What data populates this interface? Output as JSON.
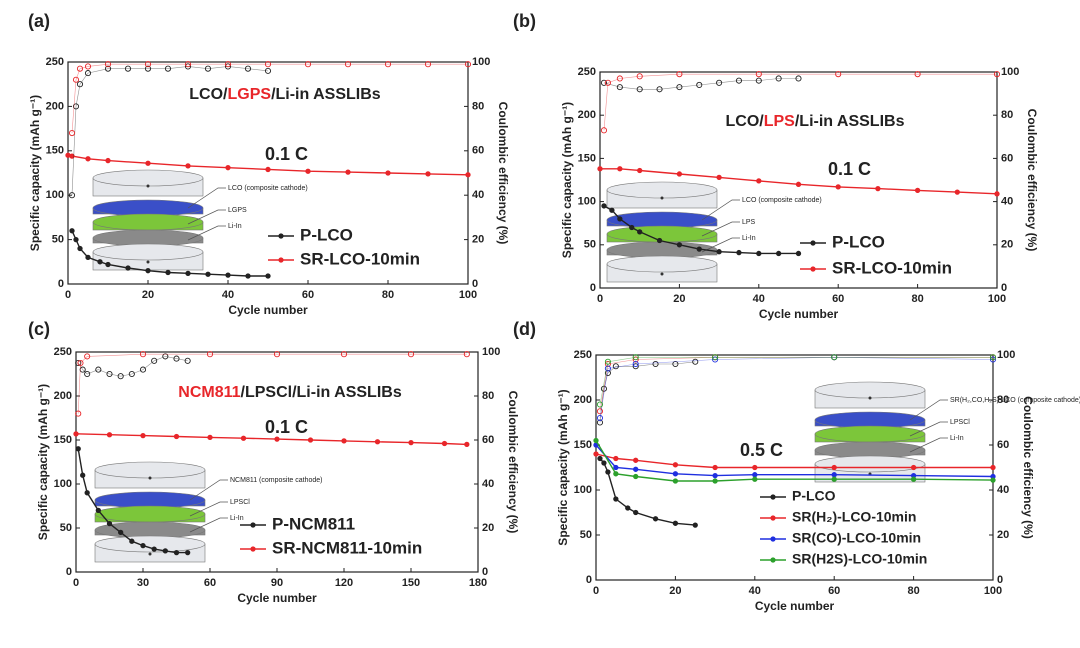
{
  "chart_data": [
    {
      "type": "line",
      "panel_label": "(a)",
      "annotation_parts": [
        {
          "text": "LCO/",
          "color": "#222222"
        },
        {
          "text": "LGPS",
          "color": "#e8262a"
        },
        {
          "text": "/Li-in ASSLIBs",
          "color": "#222222"
        }
      ],
      "rate_label": "0.1 C",
      "inset_labels": [
        {
          "text": "LCO (composite cathode)",
          "color": "#222222"
        },
        {
          "text": "LGPS",
          "color": "#e8262a"
        },
        {
          "text": "Li-In",
          "color": "#222222"
        }
      ],
      "xlabel": "Cycle number",
      "ylabel": "Specific capacity (mAh g⁻¹)",
      "y2label": "Coulombic efficiency (%)",
      "xlim": [
        0,
        100
      ],
      "xticks": [
        0,
        20,
        40,
        60,
        80,
        100
      ],
      "ylim": [
        0,
        250
      ],
      "yticks": [
        0,
        50,
        100,
        150,
        200,
        250
      ],
      "y2lim": [
        0,
        100
      ],
      "y2ticks": [
        0,
        20,
        40,
        60,
        80,
        100
      ],
      "series": [
        {
          "name": "P-LCO",
          "color": "#222222",
          "x": [
            1,
            2,
            3,
            5,
            8,
            10,
            15,
            20,
            25,
            30,
            35,
            40,
            45,
            50
          ],
          "values": [
            60,
            50,
            40,
            30,
            25,
            22,
            18,
            15,
            13,
            12,
            11,
            10,
            9,
            9
          ]
        },
        {
          "name": "SR-LCO-10min",
          "color": "#e8262a",
          "x": [
            0,
            1,
            5,
            10,
            20,
            30,
            40,
            50,
            60,
            70,
            80,
            90,
            100
          ],
          "values": [
            145,
            144,
            141,
            139,
            136,
            133,
            131,
            129,
            127,
            126,
            125,
            124,
            123
          ]
        },
        {
          "color": "#222222",
          "axis": "y2",
          "x": [
            1,
            2,
            3,
            5,
            10,
            15,
            20,
            25,
            30,
            35,
            40,
            45,
            50
          ],
          "values": [
            40,
            80,
            90,
            95,
            97,
            97,
            97,
            97,
            98,
            97,
            98,
            97,
            96
          ]
        },
        {
          "color": "#e8262a",
          "axis": "y2",
          "x": [
            1,
            2,
            3,
            5,
            10,
            20,
            30,
            40,
            50,
            60,
            70,
            80,
            90,
            100
          ],
          "values": [
            68,
            92,
            97,
            98,
            99,
            99,
            99,
            99,
            99,
            99,
            99,
            99,
            99,
            99
          ]
        }
      ]
    },
    {
      "type": "line",
      "panel_label": "(b)",
      "annotation_parts": [
        {
          "text": "LCO/",
          "color": "#222222"
        },
        {
          "text": "LPS",
          "color": "#e8262a"
        },
        {
          "text": "/Li-in ASSLIBs",
          "color": "#222222"
        }
      ],
      "rate_label": "0.1 C",
      "inset_labels": [
        {
          "text": "LCO (composite cathode)",
          "color": "#222222"
        },
        {
          "text": "LPS",
          "color": "#e8262a"
        },
        {
          "text": "Li-In",
          "color": "#222222"
        }
      ],
      "xlabel": "Cycle number",
      "ylabel": "Specific capacity (mAh g⁻¹)",
      "y2label": "Coulombic efficiency (%)",
      "xlim": [
        0,
        100
      ],
      "xticks": [
        0,
        20,
        40,
        60,
        80,
        100
      ],
      "ylim": [
        0,
        250
      ],
      "yticks": [
        0,
        50,
        100,
        150,
        200,
        250
      ],
      "y2lim": [
        0,
        100
      ],
      "y2ticks": [
        0,
        20,
        40,
        60,
        80,
        100
      ],
      "series": [
        {
          "name": "P-LCO",
          "color": "#222222",
          "x": [
            1,
            3,
            5,
            8,
            10,
            15,
            20,
            25,
            30,
            35,
            40,
            45,
            50
          ],
          "values": [
            95,
            90,
            80,
            70,
            65,
            55,
            50,
            45,
            42,
            41,
            40,
            40,
            40
          ]
        },
        {
          "name": "SR-LCO-10min",
          "color": "#e8262a",
          "x": [
            0,
            5,
            10,
            20,
            30,
            40,
            50,
            60,
            70,
            80,
            90,
            100
          ],
          "values": [
            138,
            138,
            136,
            132,
            128,
            124,
            120,
            117,
            115,
            113,
            111,
            109
          ]
        },
        {
          "color": "#222222",
          "axis": "y2",
          "x": [
            1,
            5,
            10,
            15,
            20,
            25,
            30,
            35,
            40,
            45,
            50
          ],
          "values": [
            95,
            93,
            92,
            92,
            93,
            94,
            95,
            96,
            96,
            97,
            97
          ]
        },
        {
          "color": "#e8262a",
          "axis": "y2",
          "x": [
            1,
            2,
            5,
            10,
            20,
            40,
            60,
            80,
            100
          ],
          "values": [
            73,
            95,
            97,
            98,
            99,
            99,
            99,
            99,
            99
          ]
        }
      ]
    },
    {
      "type": "line",
      "panel_label": "(c)",
      "annotation_parts": [
        {
          "text": "NCM811",
          "color": "#e8262a"
        },
        {
          "text": "/LPSCl/Li-in ASSLIBs",
          "color": "#222222"
        }
      ],
      "rate_label": "0.1 C",
      "inset_labels": [
        {
          "text": "NCM811 (composite cathode)",
          "color": "#e8262a"
        },
        {
          "text": "LPSCl",
          "color": "#222222"
        },
        {
          "text": "Li-In",
          "color": "#222222"
        }
      ],
      "xlabel": "Cycle number",
      "ylabel": "Specific capacity (mAh g⁻¹)",
      "y2label": "Coulombic efficiency (%)",
      "xlim": [
        0,
        180
      ],
      "xticks": [
        0,
        30,
        60,
        90,
        120,
        150,
        180
      ],
      "ylim": [
        0,
        250
      ],
      "yticks": [
        0,
        50,
        100,
        150,
        200,
        250
      ],
      "y2lim": [
        0,
        100
      ],
      "y2ticks": [
        0,
        20,
        40,
        60,
        80,
        100
      ],
      "series": [
        {
          "name": "P-NCM811",
          "color": "#222222",
          "x": [
            1,
            3,
            5,
            10,
            15,
            20,
            25,
            30,
            35,
            40,
            45,
            50
          ],
          "values": [
            140,
            110,
            90,
            70,
            55,
            45,
            35,
            30,
            26,
            24,
            22,
            22
          ]
        },
        {
          "name": "SR-NCM811-10min",
          "color": "#e8262a",
          "x": [
            0,
            15,
            30,
            45,
            60,
            75,
            90,
            105,
            120,
            135,
            150,
            165,
            175
          ],
          "values": [
            157,
            156,
            155,
            154,
            153,
            152,
            151,
            150,
            149,
            148,
            147,
            146,
            145
          ]
        },
        {
          "color": "#222222",
          "axis": "y2",
          "x": [
            1,
            3,
            5,
            10,
            15,
            20,
            25,
            30,
            35,
            40,
            45,
            50
          ],
          "values": [
            95,
            92,
            90,
            92,
            90,
            89,
            90,
            92,
            96,
            98,
            97,
            96
          ]
        },
        {
          "color": "#e8262a",
          "axis": "y2",
          "x": [
            1,
            2,
            5,
            30,
            60,
            90,
            120,
            150,
            175
          ],
          "values": [
            72,
            95,
            98,
            99,
            99,
            99,
            99,
            99,
            99
          ]
        }
      ]
    },
    {
      "type": "line",
      "panel_label": "(d)",
      "rate_label": "0.5 C",
      "inset_labels": [
        {
          "text": "SR(H₂,CO,H₂S)-LCO (composite cathode)",
          "color": "#e8262a"
        },
        {
          "text": "LPSCl",
          "color": "#222222"
        },
        {
          "text": "Li-In",
          "color": "#222222"
        }
      ],
      "xlabel": "Cycle number",
      "ylabel": "Specific capacity (mAh g⁻¹)",
      "y2label": "Coulombic efficiency (%)",
      "xlim": [
        0,
        100
      ],
      "xticks": [
        0,
        20,
        40,
        60,
        80,
        100
      ],
      "ylim": [
        0,
        250
      ],
      "yticks": [
        0,
        50,
        100,
        150,
        200,
        250
      ],
      "y2lim": [
        0,
        100
      ],
      "y2ticks": [
        0,
        20,
        40,
        60,
        80,
        100
      ],
      "series": [
        {
          "name": "P-LCO",
          "color": "#222222",
          "x": [
            1,
            2,
            3,
            5,
            8,
            10,
            15,
            20,
            25
          ],
          "values": [
            135,
            130,
            120,
            90,
            80,
            75,
            68,
            63,
            61
          ]
        },
        {
          "name": "SR(H₂)-LCO-10min",
          "color": "#e8262a",
          "x": [
            0,
            5,
            10,
            20,
            30,
            40,
            60,
            80,
            100
          ],
          "values": [
            140,
            135,
            133,
            128,
            125,
            125,
            125,
            125,
            125
          ]
        },
        {
          "name": "SR(CO)-LCO-10min",
          "color": "#1f2fe0",
          "x": [
            0,
            5,
            10,
            20,
            30,
            40,
            60,
            80,
            100
          ],
          "values": [
            150,
            125,
            123,
            118,
            116,
            117,
            117,
            116,
            115
          ]
        },
        {
          "name": "SR(H2S)-LCO-10min",
          "color": "#2ca02c",
          "x": [
            0,
            5,
            10,
            20,
            30,
            40,
            60,
            80,
            100
          ],
          "values": [
            155,
            118,
            115,
            110,
            110,
            112,
            112,
            112,
            111
          ]
        },
        {
          "color": "#222222",
          "axis": "y2",
          "x": [
            1,
            2,
            3,
            5,
            10,
            15,
            20,
            25
          ],
          "values": [
            70,
            85,
            92,
            95,
            95,
            96,
            96,
            97
          ]
        },
        {
          "color": "#e8262a",
          "axis": "y2",
          "x": [
            1,
            3,
            10,
            30,
            60,
            100
          ],
          "values": [
            75,
            96,
            98,
            99,
            99,
            99
          ]
        },
        {
          "color": "#1f2fe0",
          "axis": "y2",
          "x": [
            1,
            3,
            10,
            30,
            60,
            100
          ],
          "values": [
            72,
            94,
            96,
            98,
            99,
            98
          ]
        },
        {
          "color": "#2ca02c",
          "axis": "y2",
          "x": [
            1,
            3,
            10,
            30,
            60,
            100
          ],
          "values": [
            78,
            97,
            99,
            99,
            99,
            99
          ]
        }
      ]
    }
  ]
}
